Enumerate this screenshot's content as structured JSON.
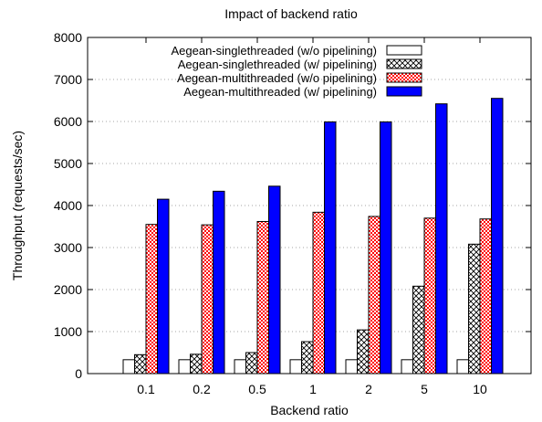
{
  "chart_data": {
    "type": "bar",
    "title": "Impact of backend ratio",
    "xlabel": "Backend ratio",
    "ylabel": "Throughput (requests/sec)",
    "ylim": [
      0,
      8000
    ],
    "yticks": [
      0,
      1000,
      2000,
      3000,
      4000,
      5000,
      6000,
      7000,
      8000
    ],
    "grid": "horizontal dotted",
    "legend_position": "top-left",
    "categories": [
      "0.1",
      "0.2",
      "0.5",
      "1",
      "2",
      "5",
      "10"
    ],
    "series": [
      {
        "name": "Aegean-singlethreaded (w/o pipelining)",
        "pattern": "white",
        "color": "#000000",
        "values": [
          330,
          330,
          330,
          330,
          330,
          330,
          330
        ]
      },
      {
        "name": "Aegean-singlethreaded (w/ pipelining)",
        "pattern": "crosshatch",
        "color": "#000000",
        "values": [
          450,
          460,
          500,
          760,
          1040,
          2080,
          3080
        ]
      },
      {
        "name": "Aegean-multithreaded (w/o pipelining)",
        "pattern": "red-check",
        "color": "#ff0000",
        "values": [
          3550,
          3540,
          3620,
          3840,
          3740,
          3700,
          3680
        ]
      },
      {
        "name": "Aegean-multithreaded (w/ pipelining)",
        "pattern": "solid-blue",
        "color": "#0000ff",
        "values": [
          4150,
          4340,
          4460,
          5990,
          5990,
          6420,
          6550
        ]
      }
    ]
  }
}
